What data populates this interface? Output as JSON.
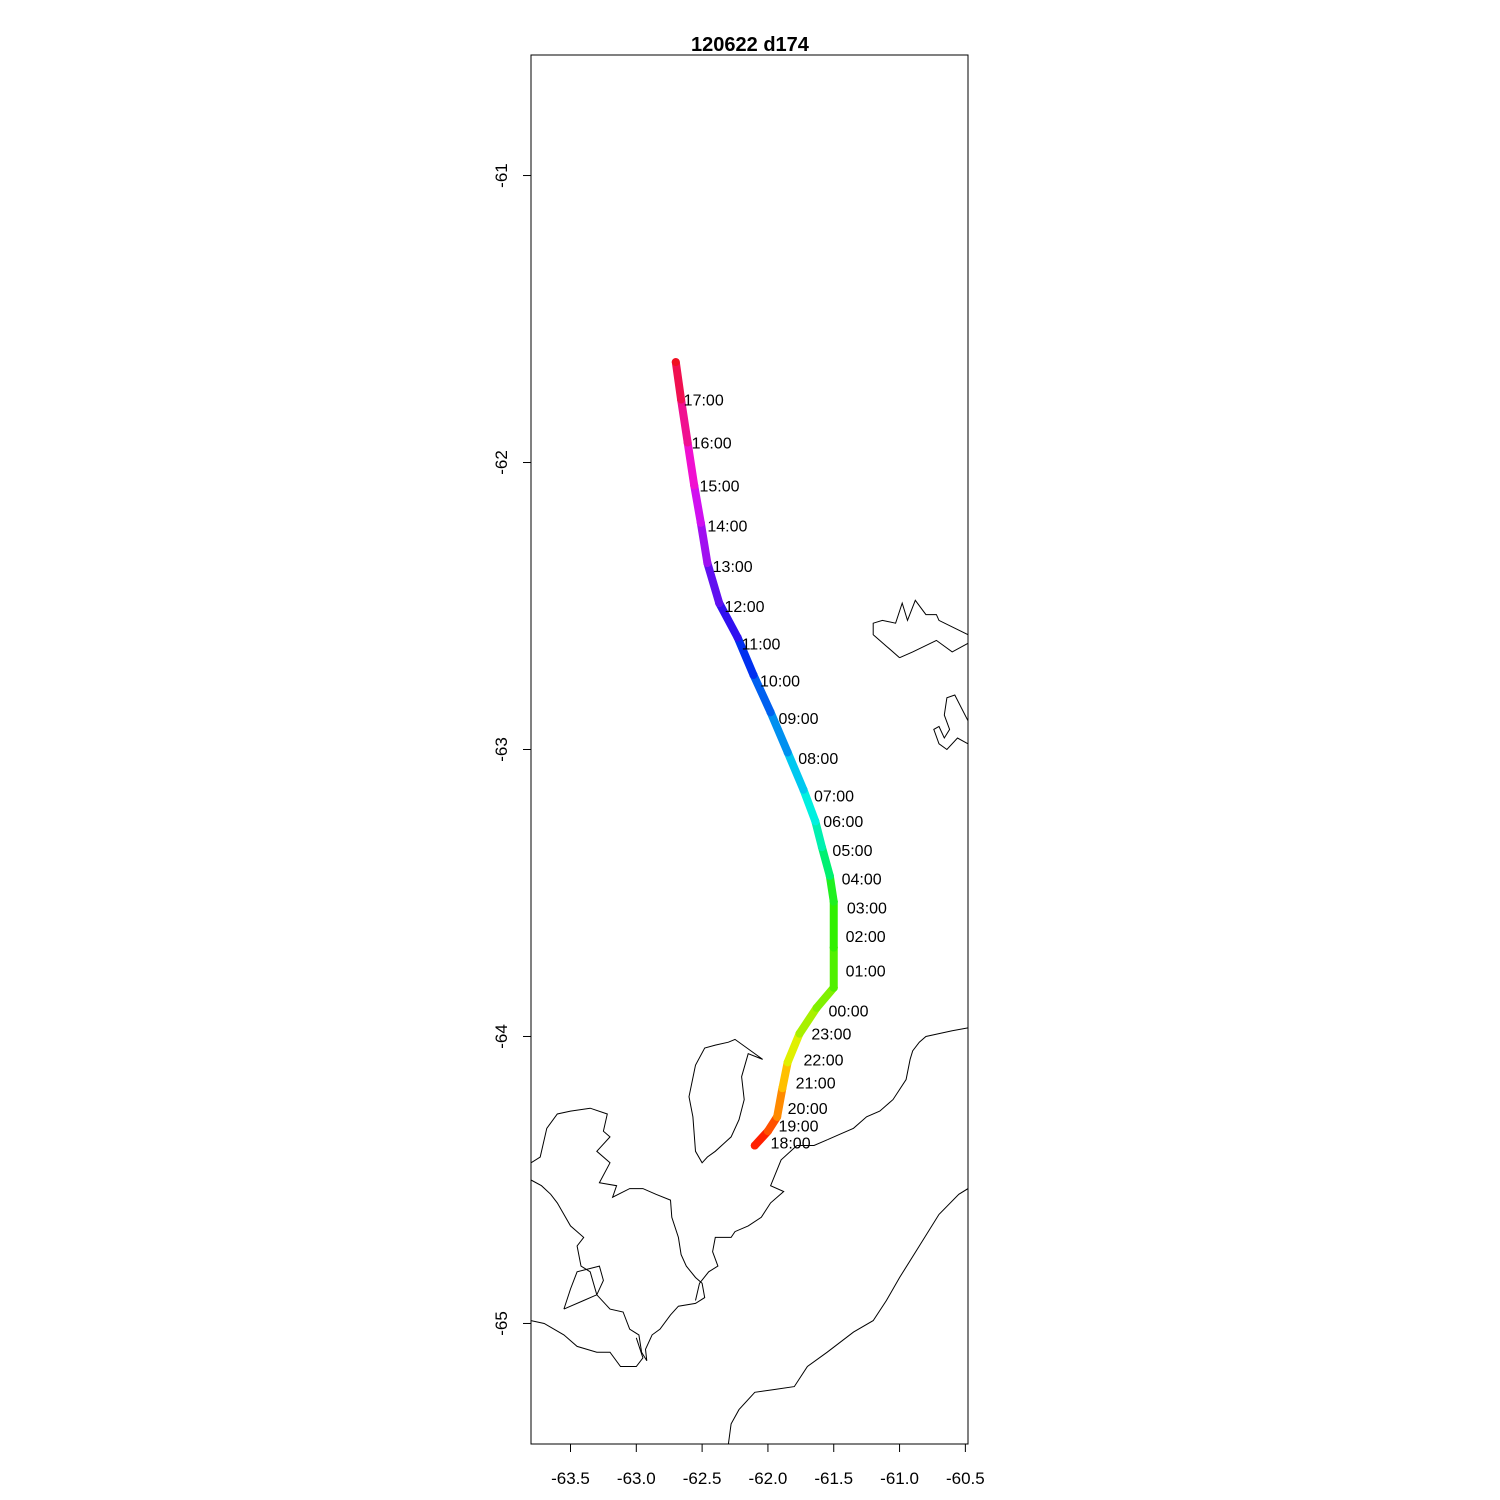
{
  "chart_data": {
    "type": "line",
    "title": "120622   d174",
    "xlabel": "",
    "ylabel": "",
    "xlim": [
      -63.8,
      -60.48
    ],
    "ylim": [
      -65.42,
      -60.58
    ],
    "x_ticks": [
      -63.5,
      -63.0,
      -62.5,
      -62.0,
      -61.5,
      -61.0,
      -60.5
    ],
    "x_tick_labels": [
      "-63.5",
      "-63.0",
      "-62.5",
      "-62.0",
      "-61.5",
      "-61.0",
      "-60.5"
    ],
    "y_ticks": [
      -61,
      -62,
      -63,
      -64,
      -65
    ],
    "y_tick_labels": [
      "-61",
      "-62",
      "-63",
      "-64",
      "-65"
    ],
    "grid": false,
    "series": [
      {
        "points": [
          {
            "x": -62.1,
            "y": -64.38,
            "color": "#ff2000"
          },
          {
            "x": -62.0,
            "y": -64.33,
            "color": "#ff5000"
          },
          {
            "x": -61.93,
            "y": -64.28,
            "color": "#ff8a00"
          },
          {
            "x": -61.89,
            "y": -64.18,
            "color": "#ffc000"
          },
          {
            "x": -61.85,
            "y": -64.09,
            "color": "#e0f000"
          },
          {
            "x": -61.76,
            "y": -63.99,
            "color": "#a8f000"
          },
          {
            "x": -61.63,
            "y": -63.9,
            "color": "#80f000"
          },
          {
            "x": -61.5,
            "y": -63.83,
            "color": "#50f000"
          },
          {
            "x": -61.5,
            "y": -63.69,
            "color": "#30f000"
          },
          {
            "x": -61.5,
            "y": -63.53,
            "color": "#20f020"
          },
          {
            "x": -61.53,
            "y": -63.44,
            "color": "#00f070"
          },
          {
            "x": -61.59,
            "y": -63.34,
            "color": "#00f0b0"
          },
          {
            "x": -61.64,
            "y": -63.25,
            "color": "#00f0e0"
          },
          {
            "x": -61.73,
            "y": -63.14,
            "color": "#00c8f0"
          },
          {
            "x": -61.85,
            "y": -63.01,
            "color": "#0090f0"
          },
          {
            "x": -61.98,
            "y": -62.87,
            "color": "#0060f0"
          },
          {
            "x": -62.11,
            "y": -62.74,
            "color": "#0030f0"
          },
          {
            "x": -62.23,
            "y": -62.61,
            "color": "#3010f0"
          },
          {
            "x": -62.37,
            "y": -62.49,
            "color": "#6010f0"
          },
          {
            "x": -62.46,
            "y": -62.35,
            "color": "#a010f0"
          },
          {
            "x": -62.51,
            "y": -62.21,
            "color": "#d010f0"
          },
          {
            "x": -62.56,
            "y": -62.08,
            "color": "#f010d0"
          },
          {
            "x": -62.61,
            "y": -61.93,
            "color": "#f01090"
          },
          {
            "x": -62.66,
            "y": -61.78,
            "color": "#f01050"
          },
          {
            "x": -62.7,
            "y": -61.65,
            "color": "#f01020"
          }
        ]
      }
    ],
    "annotations": [
      {
        "text": "17:00",
        "x": -62.64,
        "y": -61.78
      },
      {
        "text": "16:00",
        "x": -62.58,
        "y": -61.93
      },
      {
        "text": "15:00",
        "x": -62.52,
        "y": -62.08
      },
      {
        "text": "14:00",
        "x": -62.46,
        "y": -62.22
      },
      {
        "text": "13:00",
        "x": -62.42,
        "y": -62.36
      },
      {
        "text": "12:00",
        "x": -62.33,
        "y": -62.5
      },
      {
        "text": "11:00",
        "x": -62.2,
        "y": -62.63
      },
      {
        "text": "10:00",
        "x": -62.06,
        "y": -62.76
      },
      {
        "text": "09:00",
        "x": -61.92,
        "y": -62.89
      },
      {
        "text": "08:00",
        "x": -61.77,
        "y": -63.03
      },
      {
        "text": "07:00",
        "x": -61.65,
        "y": -63.16
      },
      {
        "text": "06:00",
        "x": -61.58,
        "y": -63.25
      },
      {
        "text": "05:00",
        "x": -61.51,
        "y": -63.35
      },
      {
        "text": "04:00",
        "x": -61.44,
        "y": -63.45
      },
      {
        "text": "03:00",
        "x": -61.4,
        "y": -63.55
      },
      {
        "text": "02:00",
        "x": -61.41,
        "y": -63.65
      },
      {
        "text": "01:00",
        "x": -61.41,
        "y": -63.77
      },
      {
        "text": "00:00",
        "x": -61.54,
        "y": -63.91
      },
      {
        "text": "23:00",
        "x": -61.67,
        "y": -63.99
      },
      {
        "text": "22:00",
        "x": -61.73,
        "y": -64.08
      },
      {
        "text": "21:00",
        "x": -61.79,
        "y": -64.16
      },
      {
        "text": "20:00",
        "x": -61.85,
        "y": -64.25
      },
      {
        "text": "19:00",
        "x": -61.92,
        "y": -64.31
      },
      {
        "text": "18:00",
        "x": -61.98,
        "y": -64.37
      }
    ]
  },
  "coastlines": [
    [
      [
        -61.0,
        -62.68
      ],
      [
        -61.1,
        -62.64
      ],
      [
        -61.2,
        -62.6
      ],
      [
        -61.2,
        -62.56
      ],
      [
        -61.13,
        -62.55
      ],
      [
        -61.03,
        -62.56
      ],
      [
        -60.98,
        -62.49
      ],
      [
        -60.94,
        -62.55
      ],
      [
        -60.88,
        -62.48
      ],
      [
        -60.8,
        -62.53
      ],
      [
        -60.72,
        -62.53
      ],
      [
        -60.7,
        -62.55
      ],
      [
        -60.48,
        -62.6
      ],
      [
        -60.48,
        -62.63
      ],
      [
        -60.6,
        -62.66
      ],
      [
        -60.72,
        -62.62
      ],
      [
        -60.9,
        -62.66
      ],
      [
        -61.0,
        -62.68
      ]
    ],
    [
      [
        -60.48,
        -62.9
      ],
      [
        -60.58,
        -62.81
      ],
      [
        -60.64,
        -62.82
      ],
      [
        -60.66,
        -62.88
      ],
      [
        -60.62,
        -62.93
      ],
      [
        -60.66,
        -62.96
      ],
      [
        -60.7,
        -62.92
      ],
      [
        -60.74,
        -62.93
      ],
      [
        -60.7,
        -62.98
      ],
      [
        -60.64,
        -63.0
      ],
      [
        -60.56,
        -62.96
      ],
      [
        -60.48,
        -62.98
      ]
    ],
    [
      [
        -62.04,
        -64.08
      ],
      [
        -62.15,
        -64.06
      ],
      [
        -62.2,
        -64.14
      ],
      [
        -62.18,
        -64.22
      ],
      [
        -62.22,
        -64.29
      ],
      [
        -62.28,
        -64.35
      ],
      [
        -62.4,
        -64.4
      ],
      [
        -62.46,
        -64.42
      ],
      [
        -62.5,
        -64.44
      ],
      [
        -62.55,
        -64.4
      ],
      [
        -62.57,
        -64.28
      ],
      [
        -62.6,
        -64.21
      ],
      [
        -62.55,
        -64.1
      ],
      [
        -62.48,
        -64.04
      ],
      [
        -62.4,
        -64.03
      ],
      [
        -62.3,
        -64.02
      ],
      [
        -62.25,
        -64.01
      ],
      [
        -62.04,
        -64.08
      ]
    ],
    [
      [
        -63.8,
        -64.44
      ],
      [
        -63.73,
        -64.42
      ],
      [
        -63.68,
        -64.32
      ],
      [
        -63.6,
        -64.27
      ],
      [
        -63.5,
        -64.26
      ],
      [
        -63.35,
        -64.25
      ],
      [
        -63.22,
        -64.27
      ],
      [
        -63.25,
        -64.33
      ],
      [
        -63.2,
        -64.35
      ],
      [
        -63.3,
        -64.4
      ],
      [
        -63.2,
        -64.44
      ],
      [
        -63.28,
        -64.51
      ],
      [
        -63.15,
        -64.52
      ],
      [
        -63.18,
        -64.56
      ],
      [
        -63.05,
        -64.53
      ],
      [
        -62.95,
        -64.53
      ],
      [
        -62.85,
        -64.55
      ],
      [
        -62.74,
        -64.57
      ],
      [
        -62.73,
        -64.63
      ],
      [
        -62.68,
        -64.7
      ],
      [
        -62.66,
        -64.76
      ],
      [
        -62.62,
        -64.8
      ],
      [
        -62.55,
        -64.84
      ],
      [
        -62.5,
        -64.86
      ],
      [
        -62.48,
        -64.91
      ],
      [
        -62.55,
        -64.93
      ],
      [
        -62.68,
        -64.94
      ],
      [
        -62.74,
        -64.97
      ],
      [
        -62.82,
        -65.02
      ],
      [
        -62.88,
        -65.04
      ],
      [
        -62.93,
        -65.09
      ],
      [
        -62.92,
        -65.13
      ],
      [
        -62.96,
        -65.1
      ],
      [
        -62.98,
        -65.04
      ],
      [
        -63.05,
        -65.02
      ],
      [
        -63.1,
        -64.96
      ],
      [
        -63.2,
        -64.95
      ],
      [
        -63.3,
        -64.9
      ],
      [
        -63.35,
        -64.82
      ],
      [
        -63.42,
        -64.8
      ],
      [
        -63.45,
        -64.73
      ],
      [
        -63.4,
        -64.7
      ],
      [
        -63.5,
        -64.66
      ],
      [
        -63.55,
        -64.62
      ],
      [
        -63.6,
        -64.58
      ],
      [
        -63.65,
        -64.55
      ],
      [
        -63.72,
        -64.52
      ],
      [
        -63.8,
        -64.5
      ]
    ],
    [
      [
        -63.55,
        -64.95
      ],
      [
        -63.5,
        -64.88
      ],
      [
        -63.45,
        -64.82
      ],
      [
        -63.28,
        -64.8
      ],
      [
        -63.25,
        -64.85
      ],
      [
        -63.3,
        -64.9
      ],
      [
        -63.4,
        -64.92
      ],
      [
        -63.55,
        -64.95
      ]
    ],
    [
      [
        -63.8,
        -64.99
      ],
      [
        -63.7,
        -65.0
      ],
      [
        -63.55,
        -65.04
      ],
      [
        -63.45,
        -65.08
      ],
      [
        -63.3,
        -65.1
      ],
      [
        -63.2,
        -65.1
      ],
      [
        -63.12,
        -65.15
      ],
      [
        -63.0,
        -65.15
      ],
      [
        -62.95,
        -65.12
      ],
      [
        -63.0,
        -65.05
      ]
    ],
    [
      [
        -62.3,
        -65.42
      ],
      [
        -62.28,
        -65.35
      ],
      [
        -62.22,
        -65.3
      ],
      [
        -62.1,
        -65.24
      ],
      [
        -61.95,
        -65.23
      ],
      [
        -61.8,
        -65.22
      ],
      [
        -61.7,
        -65.15
      ],
      [
        -61.55,
        -65.1
      ],
      [
        -61.35,
        -65.03
      ],
      [
        -61.2,
        -64.99
      ],
      [
        -61.1,
        -64.92
      ],
      [
        -61.0,
        -64.84
      ],
      [
        -60.85,
        -64.73
      ],
      [
        -60.7,
        -64.62
      ],
      [
        -60.55,
        -64.55
      ],
      [
        -60.48,
        -64.53
      ]
    ],
    [
      [
        -61.55,
        -64.36
      ],
      [
        -61.65,
        -64.38
      ],
      [
        -61.78,
        -64.38
      ],
      [
        -61.9,
        -64.43
      ],
      [
        -61.98,
        -64.52
      ],
      [
        -61.88,
        -64.54
      ],
      [
        -61.98,
        -64.58
      ],
      [
        -62.05,
        -64.63
      ],
      [
        -62.15,
        -64.66
      ],
      [
        -62.25,
        -64.68
      ],
      [
        -62.28,
        -64.7
      ],
      [
        -62.4,
        -64.7
      ],
      [
        -62.42,
        -64.75
      ],
      [
        -62.38,
        -64.8
      ],
      [
        -62.45,
        -64.82
      ],
      [
        -62.52,
        -64.86
      ],
      [
        -62.55,
        -64.92
      ]
    ],
    [
      [
        -61.55,
        -64.36
      ],
      [
        -61.45,
        -64.34
      ],
      [
        -61.35,
        -64.32
      ],
      [
        -61.25,
        -64.28
      ],
      [
        -61.15,
        -64.26
      ],
      [
        -61.05,
        -64.22
      ],
      [
        -60.95,
        -64.15
      ],
      [
        -60.92,
        -64.08
      ],
      [
        -60.9,
        -64.05
      ],
      [
        -60.85,
        -64.02
      ],
      [
        -60.8,
        -64.0
      ],
      [
        -60.7,
        -63.99
      ],
      [
        -60.6,
        -63.98
      ],
      [
        -60.48,
        -63.97
      ]
    ]
  ]
}
